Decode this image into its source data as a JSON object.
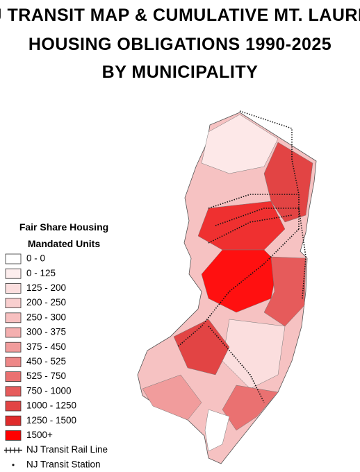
{
  "title": [
    "NJ TRANSIT MAP & CUMULATIVE MT. LAUREL",
    "HOUSING OBLIGATIONS 1990-2025",
    "BY MUNICIPALITY"
  ],
  "legend": {
    "title": [
      "Fair Share Housing",
      "Mandated Units"
    ],
    "items": [
      {
        "label": "0 - 0",
        "color": "#ffffff"
      },
      {
        "label": "0 - 125",
        "color": "#fdeeee"
      },
      {
        "label": "125 - 200",
        "color": "#fbdede"
      },
      {
        "label": "200 - 250",
        "color": "#f9cfcf"
      },
      {
        "label": "250 - 300",
        "color": "#f7c0c0"
      },
      {
        "label": "300 - 375",
        "color": "#f4afaf"
      },
      {
        "label": "375 - 450",
        "color": "#f19c9c"
      },
      {
        "label": "450 - 525",
        "color": "#ee8787"
      },
      {
        "label": "525 - 750",
        "color": "#ea7171"
      },
      {
        "label": "750 - 1000",
        "color": "#e65b5b"
      },
      {
        "label": "1000 - 1250",
        "color": "#e24444"
      },
      {
        "label": "1250 - 1500",
        "color": "#e02b2b"
      },
      {
        "label": "1500+",
        "color": "#ff0000"
      }
    ],
    "rail_line": "NJ Transit Rail Line",
    "station": "NJ Transit Station"
  }
}
